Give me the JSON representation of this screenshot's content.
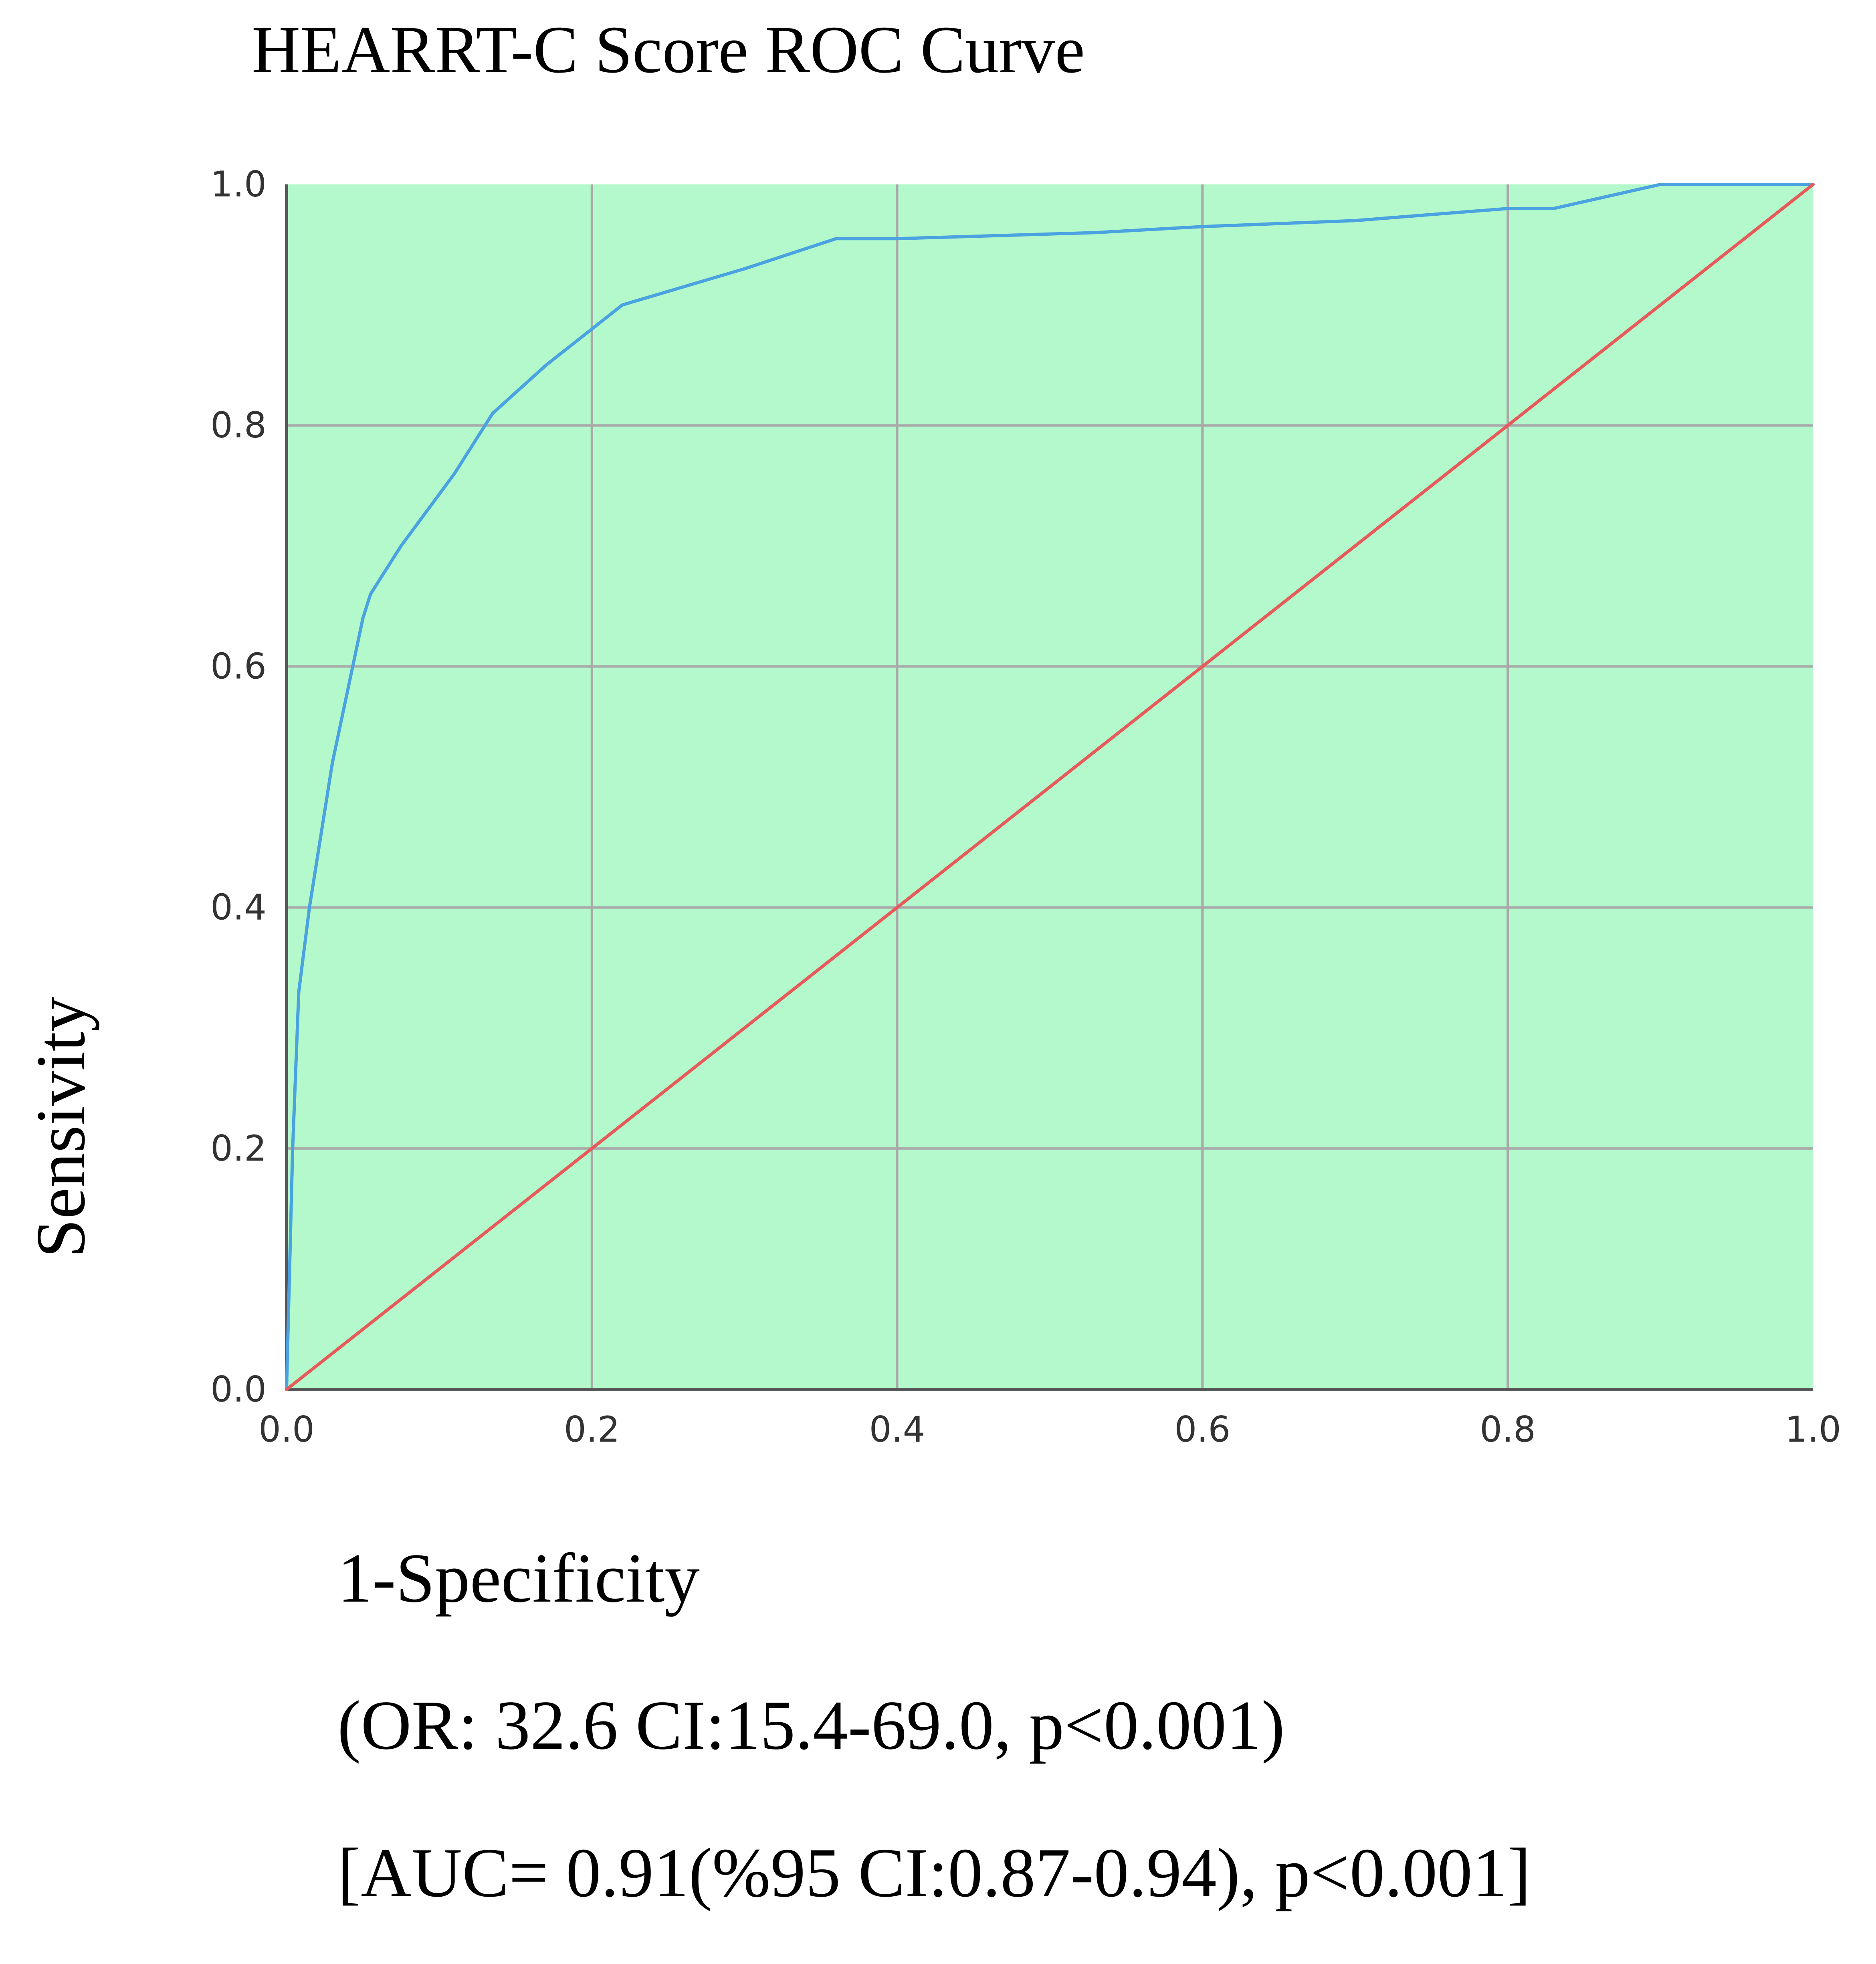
{
  "chart_data": {
    "type": "line",
    "title": "HEARRT-C Score ROC Curve",
    "xlabel": "1-Specificity",
    "ylabel": "Sensivity",
    "xlim": [
      0,
      1
    ],
    "ylim": [
      0,
      1
    ],
    "x_ticks": [
      "0.0",
      "0.2",
      "0.4",
      "0.6",
      "0.8",
      "1.0"
    ],
    "y_ticks": [
      "0.0",
      "0.2",
      "0.4",
      "0.6",
      "0.8",
      "1.0"
    ],
    "grid": true,
    "series": [
      {
        "color": "#4aa3e0",
        "x": [
          0.0,
          0.004,
          0.008,
          0.015,
          0.03,
          0.05,
          0.055,
          0.075,
          0.11,
          0.135,
          0.17,
          0.22,
          0.3,
          0.36,
          0.4,
          0.53,
          0.6,
          0.7,
          0.8,
          0.83,
          0.9,
          1.0
        ],
        "y": [
          0.0,
          0.2,
          0.33,
          0.4,
          0.52,
          0.64,
          0.66,
          0.7,
          0.76,
          0.81,
          0.85,
          0.9,
          0.93,
          0.955,
          0.955,
          0.96,
          0.965,
          0.97,
          0.98,
          0.98,
          1.0,
          1.0
        ]
      },
      {
        "color": "#e85a5a",
        "x": [
          0.0,
          1.0
        ],
        "y": [
          0.0,
          1.0
        ]
      }
    ],
    "plot_background": "#b3f9cb",
    "grid_color": "#a9a9a9",
    "annotations": [
      "(OR: 32.6 CI:15.4-69.0, p<0.001)",
      "[AUC= 0.91(%95 CI:0.87-0.94), p<0.001]"
    ]
  }
}
